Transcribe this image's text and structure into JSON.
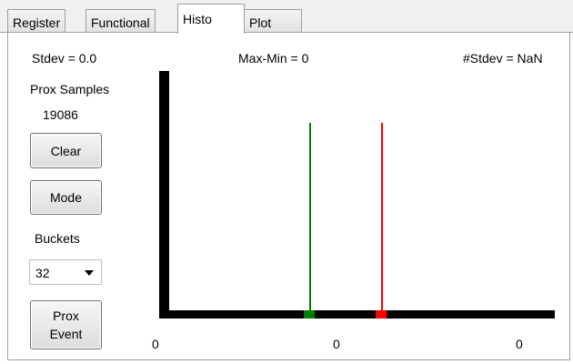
{
  "tabs": [
    "Register",
    "Functional",
    "Histo",
    "Plot"
  ],
  "stats": {
    "stdev": "Stdev = 0.0",
    "max_min": "Max-Min = 0",
    "num_stdev": "#Stdev = NaN"
  },
  "sidebar": {
    "samples_label": "Prox Samples",
    "samples_value": "19086",
    "clear_label": "Clear",
    "mode_label": "Mode",
    "buckets_label": "Buckets",
    "buckets_value": "32",
    "prox_event_line1": "Prox",
    "prox_event_line2": "Event"
  },
  "chart_data": {
    "type": "bar",
    "x_tick_labels": [
      "0",
      "0",
      "0"
    ],
    "markers": [
      {
        "color": "#008000",
        "role": "green marker line"
      },
      {
        "color": "#ff0000",
        "role": "red marker line"
      }
    ]
  },
  "colors": {
    "green": "#008000",
    "red": "#ff0000"
  }
}
